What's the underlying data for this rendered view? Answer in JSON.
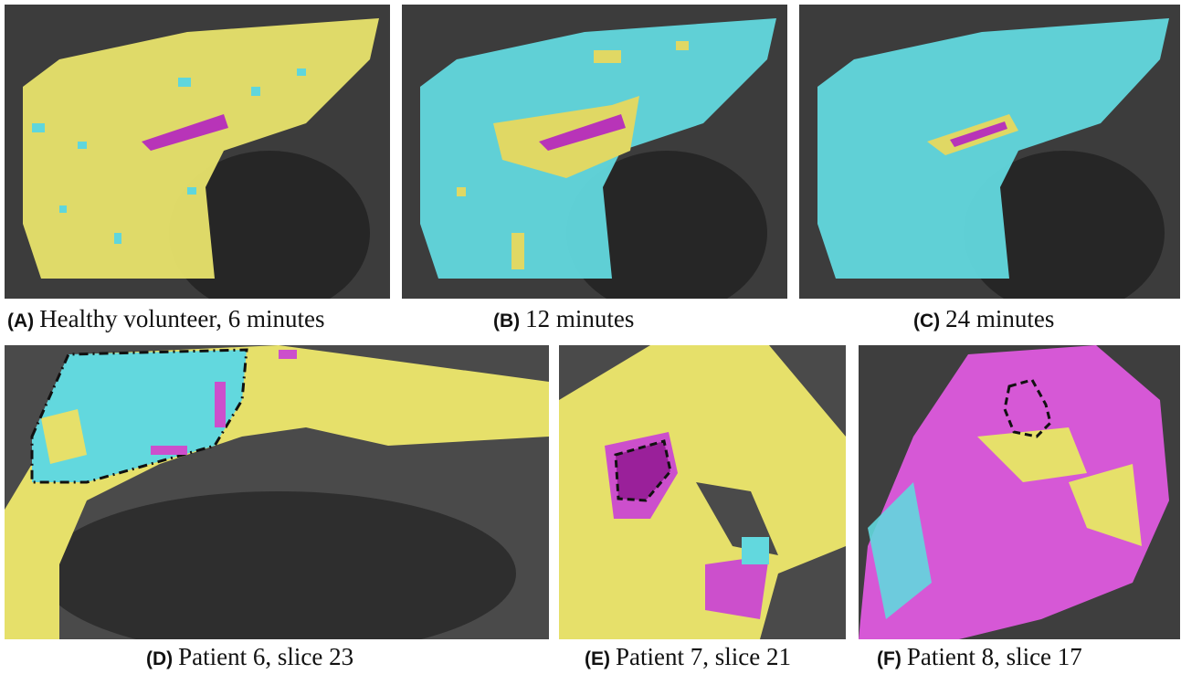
{
  "panels": [
    {
      "letter": "(A)",
      "caption": "Healthy volunteer, 6 minutes"
    },
    {
      "letter": "(B)",
      "caption": "12 minutes"
    },
    {
      "letter": "(C)",
      "caption": "24 minutes"
    },
    {
      "letter": "(D)",
      "caption": "Patient 6, slice 23"
    },
    {
      "letter": "(E)",
      "caption": "Patient 7, slice 21"
    },
    {
      "letter": "(F)",
      "caption": "Patient 8, slice 17"
    }
  ]
}
